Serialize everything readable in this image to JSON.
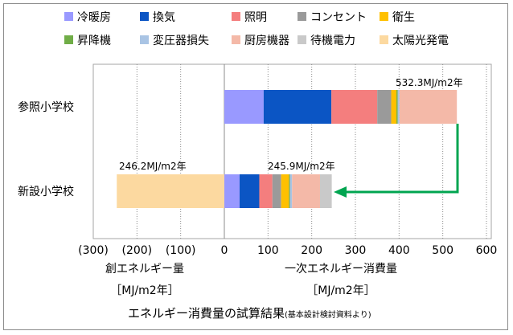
{
  "chart_data": {
    "type": "bar",
    "orientation": "horizontal",
    "stacked": true,
    "categories": [
      "参照小学校",
      "新設小学校"
    ],
    "xlim": [
      -300,
      600
    ],
    "x_ticks": [
      -300,
      -200,
      -100,
      0,
      100,
      200,
      300,
      400,
      500,
      600
    ],
    "x_tick_labels": [
      "(300)",
      "(200)",
      "(100)",
      "0",
      "100",
      "200",
      "300",
      "400",
      "500",
      "600"
    ],
    "grid": "vertical dotted",
    "legend_position": "top",
    "x_axis_left_label": "創エネルギー量",
    "x_axis_left_unit": "［MJ/m2年］",
    "x_axis_right_label": "一次エネルギー消費量",
    "x_axis_right_unit": "［MJ/m2年］",
    "caption": "エネルギー消費量の試算結果",
    "caption_note": "(基本設計検討資料より)",
    "series": [
      {
        "name": "冷暖房",
        "color": "#9999ff",
        "values": [
          90,
          35
        ]
      },
      {
        "name": "換気",
        "color": "#0b55c4",
        "values": [
          155,
          45
        ]
      },
      {
        "name": "照明",
        "color": "#f47e7e",
        "values": [
          105,
          30
        ]
      },
      {
        "name": "コンセント",
        "color": "#9a9a9a",
        "values": [
          32,
          20
        ]
      },
      {
        "name": "衛生",
        "color": "#ffc000",
        "values": [
          12,
          18
        ]
      },
      {
        "name": "昇降機",
        "color": "#70ad47",
        "values": [
          3,
          2
        ]
      },
      {
        "name": "変圧器損失",
        "color": "#a9c4e4",
        "values": [
          4,
          5
        ]
      },
      {
        "name": "厨房機器",
        "color": "#f4b9a8",
        "values": [
          131.3,
          64
        ]
      },
      {
        "name": "待機電力",
        "color": "#c9c9c9",
        "values": [
          0,
          26.9
        ]
      },
      {
        "name": "太陽光発電",
        "color": "#fcd9a0",
        "values": [
          0,
          -246.2
        ]
      }
    ],
    "annotations": [
      {
        "category": "参照小学校",
        "text": "532.3MJ/m2年"
      },
      {
        "category": "新設小学校",
        "text": "245.9MJ/m2年",
        "side": "right"
      },
      {
        "category": "新設小学校",
        "text": "246.2MJ/m2年",
        "side": "left"
      }
    ],
    "arrow": {
      "from": "参照小学校",
      "to": "新設小学校",
      "color": "#00a550"
    }
  }
}
